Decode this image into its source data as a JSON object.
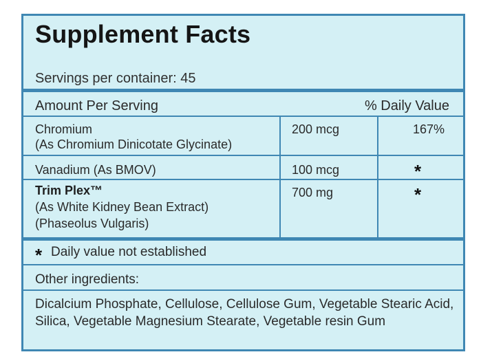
{
  "panel": {
    "title": "Supplement Facts",
    "servings": "Servings per container: 45",
    "header": {
      "amount_label": "Amount Per Serving",
      "dv_label": "% Daily Value"
    },
    "rows": [
      {
        "name": "Chromium",
        "form": "(As Chromium Dinicotate Glycinate)",
        "amount": "200 mcg",
        "dv": "167%"
      },
      {
        "name": "Vanadium (As BMOV)",
        "amount": "100 mcg",
        "dv": "*"
      },
      {
        "name": "Trim Plex™",
        "form": "(As White Kidney Bean Extract)",
        "form2": "(Phaseolus Vulgaris)",
        "amount": "700 mg",
        "dv": "*"
      }
    ],
    "footnote": {
      "star": "*",
      "text": "Daily value not established"
    },
    "other_ingredients_label": "Other ingredients:",
    "other_ingredients": "Dicalcium Phosphate, Cellulose, Cellulose Gum, Vegetable Stearic Acid, Silica, Vegetable Magnesium Stearate, Vegetable resin Gum"
  },
  "colors": {
    "border": "#3f87b3",
    "background": "#d4f0f5"
  }
}
